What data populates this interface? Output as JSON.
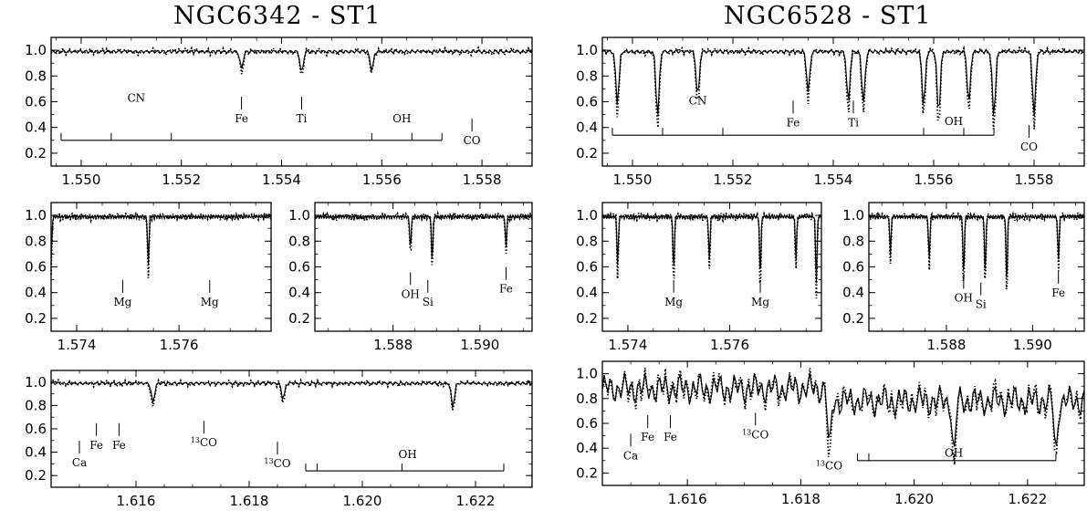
{
  "titles": {
    "left": "NGC6342 - ST1",
    "right": "NGC6528 - ST1"
  },
  "colors": {
    "ink": "#000000",
    "background": "#ffffff"
  },
  "chart_data": [
    {
      "type": "line",
      "group": "NGC6342 - ST1",
      "xlim": [
        1.5494,
        1.559
      ],
      "ylim": [
        0.1,
        1.1
      ],
      "xticks": [
        "1.550",
        "1.552",
        "1.554",
        "1.556",
        "1.558"
      ],
      "xtick_values": [
        1.55,
        1.552,
        1.554,
        1.556,
        1.558
      ],
      "yticks": [
        "0.2",
        "0.4",
        "0.6",
        "0.8",
        "1.0"
      ],
      "lines": [
        [
          1.5532,
          0.84
        ],
        [
          1.5544,
          0.8
        ],
        [
          1.5558,
          0.82
        ]
      ],
      "labels": [
        {
          "text": "CN",
          "x": 1.5511,
          "y": 0.6,
          "tick": false
        },
        {
          "text": "Fe",
          "x": 1.5532,
          "y": 0.44,
          "tick": true
        },
        {
          "text": "Ti",
          "x": 1.5544,
          "y": 0.44,
          "tick": true
        },
        {
          "text": "OH",
          "x": 1.5564,
          "y": 0.44,
          "tick": false
        },
        {
          "text": "CO",
          "x": 1.5578,
          "y": 0.27,
          "tick": true
        }
      ],
      "bar": {
        "from": 1.5496,
        "to": 1.5572,
        "y": 0.3,
        "ticks": [
          1.5496,
          1.5506,
          1.5518,
          1.5558,
          1.5566,
          1.5572
        ]
      }
    },
    {
      "type": "line",
      "group": "NGC6342 - ST1",
      "xlim": [
        1.5735,
        1.5778
      ],
      "ylim": [
        0.1,
        1.1
      ],
      "xticks": [
        "1.574",
        "1.576"
      ],
      "xtick_values": [
        1.574,
        1.576
      ],
      "yticks": [
        "0.2",
        "0.4",
        "0.6",
        "0.8",
        "1.0"
      ],
      "lines": [
        [
          1.5735,
          0.58
        ],
        [
          1.5754,
          0.55
        ]
      ],
      "labels": [
        {
          "text": "Mg",
          "x": 1.5749,
          "y": 0.3,
          "tick": true
        },
        {
          "text": "Mg",
          "x": 1.5766,
          "y": 0.3,
          "tick": true
        }
      ]
    },
    {
      "type": "line",
      "group": "NGC6342 - ST1",
      "xlim": [
        1.5862,
        1.5912
      ],
      "ylim": [
        0.1,
        1.1
      ],
      "xticks": [
        "1.588",
        "1.590"
      ],
      "xtick_values": [
        1.588,
        1.59
      ],
      "yticks": [
        "0.2",
        "0.4",
        "0.6",
        "0.8",
        "1.0"
      ],
      "lines": [
        [
          1.5884,
          0.7
        ],
        [
          1.5889,
          0.6
        ],
        [
          1.5906,
          0.72
        ]
      ],
      "labels": [
        {
          "text": "OH",
          "x": 1.5884,
          "y": 0.36,
          "tick": true
        },
        {
          "text": "Si",
          "x": 1.5888,
          "y": 0.3,
          "tick": true
        },
        {
          "text": "Fe",
          "x": 1.5906,
          "y": 0.4,
          "tick": true
        }
      ]
    },
    {
      "type": "line",
      "group": "NGC6342 - ST1",
      "xlim": [
        1.6145,
        1.623
      ],
      "ylim": [
        0.1,
        1.1
      ],
      "xticks": [
        "1.616",
        "1.618",
        "1.620",
        "1.622"
      ],
      "xtick_values": [
        1.616,
        1.618,
        1.62,
        1.622
      ],
      "yticks": [
        "0.2",
        "0.4",
        "0.6",
        "0.8",
        "1.0"
      ],
      "lines": [
        [
          1.6163,
          0.8
        ],
        [
          1.6186,
          0.84
        ],
        [
          1.6216,
          0.76
        ]
      ],
      "labels": [
        {
          "text": "Ca",
          "x": 1.615,
          "y": 0.28,
          "tick": true
        },
        {
          "text": "Fe",
          "x": 1.6153,
          "y": 0.43,
          "tick": true
        },
        {
          "text": "Fe",
          "x": 1.6157,
          "y": 0.43,
          "tick": true
        },
        {
          "text": "13CO",
          "x": 1.6172,
          "y": 0.45,
          "tick": true
        },
        {
          "text": "13CO",
          "x": 1.6185,
          "y": 0.27,
          "tick": true
        },
        {
          "text": "OH",
          "x": 1.6208,
          "y": 0.35,
          "tick": false
        }
      ],
      "bar": {
        "from": 1.619,
        "to": 1.6225,
        "y": 0.24,
        "ticks": [
          1.619,
          1.6192,
          1.6207,
          1.6225
        ]
      }
    },
    {
      "type": "line",
      "group": "NGC6528 - ST1",
      "xlim": [
        1.5494,
        1.559
      ],
      "ylim": [
        0.1,
        1.1
      ],
      "xticks": [
        "1.550",
        "1.552",
        "1.554",
        "1.556",
        "1.558"
      ],
      "xtick_values": [
        1.55,
        1.552,
        1.554,
        1.556,
        1.558
      ],
      "yticks": [
        "0.2",
        "0.4",
        "0.6",
        "0.8",
        "1.0"
      ],
      "lines": [
        [
          1.5497,
          0.52
        ],
        [
          1.5505,
          0.4
        ],
        [
          1.5513,
          0.58
        ],
        [
          1.5535,
          0.62
        ],
        [
          1.5543,
          0.52
        ],
        [
          1.5546,
          0.52
        ],
        [
          1.5558,
          0.5
        ],
        [
          1.5561,
          0.42
        ],
        [
          1.5567,
          0.52
        ],
        [
          1.5572,
          0.4
        ],
        [
          1.558,
          0.42
        ]
      ],
      "labels": [
        {
          "text": "CN",
          "x": 1.5513,
          "y": 0.58,
          "tick": false
        },
        {
          "text": "Fe",
          "x": 1.5532,
          "y": 0.41,
          "tick": true
        },
        {
          "text": "Ti",
          "x": 1.5544,
          "y": 0.41,
          "tick": true
        },
        {
          "text": "OH",
          "x": 1.5564,
          "y": 0.42,
          "tick": false
        },
        {
          "text": "CO",
          "x": 1.5579,
          "y": 0.22,
          "tick": true
        }
      ],
      "bar": {
        "from": 1.5496,
        "to": 1.5572,
        "y": 0.34,
        "ticks": [
          1.5496,
          1.5506,
          1.5518,
          1.5558,
          1.5566,
          1.5572
        ]
      }
    },
    {
      "type": "line",
      "group": "NGC6528 - ST1",
      "xlim": [
        1.5735,
        1.5778
      ],
      "ylim": [
        0.1,
        1.1
      ],
      "xticks": [
        "1.574",
        "1.576"
      ],
      "xtick_values": [
        1.574,
        1.576
      ],
      "yticks": [
        "0.2",
        "0.4",
        "0.6",
        "0.8",
        "1.0"
      ],
      "lines": [
        [
          1.5738,
          0.55
        ],
        [
          1.5749,
          0.5
        ],
        [
          1.5756,
          0.6
        ],
        [
          1.5766,
          0.45
        ],
        [
          1.5773,
          0.6
        ],
        [
          1.5777,
          0.4
        ]
      ],
      "labels": [
        {
          "text": "Mg",
          "x": 1.5749,
          "y": 0.3,
          "tick": true
        },
        {
          "text": "Mg",
          "x": 1.5766,
          "y": 0.3,
          "tick": true
        }
      ]
    },
    {
      "type": "line",
      "group": "NGC6528 - ST1",
      "xlim": [
        1.5862,
        1.5912
      ],
      "ylim": [
        0.1,
        1.1
      ],
      "xticks": [
        "1.588",
        "1.590"
      ],
      "xtick_values": [
        1.588,
        1.59
      ],
      "yticks": [
        "0.2",
        "0.4",
        "0.6",
        "0.8",
        "1.0"
      ],
      "lines": [
        [
          1.5867,
          0.66
        ],
        [
          1.5876,
          0.6
        ],
        [
          1.5884,
          0.45
        ],
        [
          1.5889,
          0.48
        ],
        [
          1.5894,
          0.38
        ],
        [
          1.5906,
          0.6
        ]
      ],
      "labels": [
        {
          "text": "OH",
          "x": 1.5884,
          "y": 0.33,
          "tick": true
        },
        {
          "text": "Si",
          "x": 1.5888,
          "y": 0.28,
          "tick": true
        },
        {
          "text": "Fe",
          "x": 1.5906,
          "y": 0.37,
          "tick": true
        }
      ]
    },
    {
      "type": "line",
      "group": "NGC6528 - ST1",
      "xlim": [
        1.6145,
        1.623
      ],
      "ylim": [
        0.1,
        1.1
      ],
      "xticks": [
        "1.616",
        "1.618",
        "1.620",
        "1.622"
      ],
      "xtick_values": [
        1.616,
        1.618,
        1.62,
        1.622
      ],
      "yticks": [
        "0.2",
        "0.4",
        "0.6",
        "0.8",
        "1.0"
      ],
      "lines": [
        [
          1.6185,
          0.42
        ],
        [
          1.6207,
          0.45
        ],
        [
          1.6225,
          0.48
        ]
      ],
      "labels": [
        {
          "text": "Ca",
          "x": 1.615,
          "y": 0.31,
          "tick": true
        },
        {
          "text": "Fe",
          "x": 1.6153,
          "y": 0.46,
          "tick": true
        },
        {
          "text": "Fe",
          "x": 1.6157,
          "y": 0.46,
          "tick": true
        },
        {
          "text": "13CO",
          "x": 1.6172,
          "y": 0.48,
          "tick": true
        },
        {
          "text": "13CO",
          "x": 1.6185,
          "y": 0.23,
          "tick": false
        },
        {
          "text": "OH",
          "x": 1.6207,
          "y": 0.33,
          "tick": false
        }
      ],
      "bar": {
        "from": 1.619,
        "to": 1.6225,
        "y": 0.3,
        "ticks": [
          1.619,
          1.6192,
          1.6207,
          1.6225
        ]
      },
      "noisy": true
    }
  ]
}
